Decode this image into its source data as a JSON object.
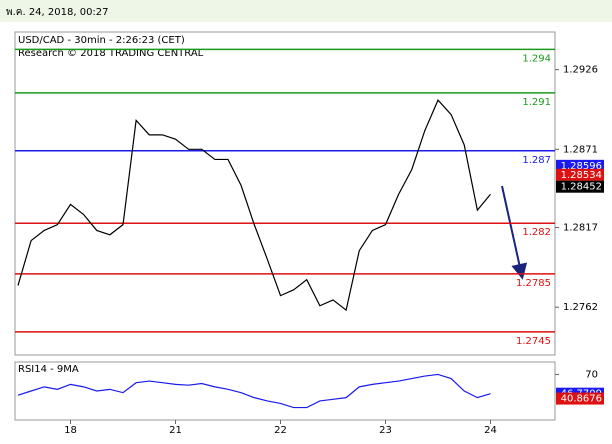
{
  "header": "พ.ค. 24, 2018, 00:27",
  "chart_data": [
    {
      "type": "line",
      "title": "USD/CAD - 30min - 2:26:23 (CET)",
      "subtitle": "Research © 2018 TRADING CENTRAL",
      "categories": [
        null,
        null,
        null,
        null,
        "18",
        null,
        null,
        null,
        null,
        null,
        null,
        null,
        "21",
        null,
        null,
        null,
        null,
        null,
        null,
        null,
        "22",
        null,
        null,
        null,
        null,
        null,
        null,
        null,
        "23",
        null,
        null,
        null,
        null,
        null,
        null,
        null,
        "24"
      ],
      "values": [
        1.2777,
        1.2808,
        1.2815,
        1.2819,
        1.2833,
        1.2826,
        1.2815,
        1.2812,
        1.2819,
        1.2891,
        1.2881,
        1.2881,
        1.2878,
        1.2871,
        1.2871,
        1.2864,
        1.2864,
        1.2846,
        1.2819,
        1.2795,
        1.277,
        1.2774,
        1.2781,
        1.2763,
        1.2767,
        1.276,
        1.2801,
        1.2815,
        1.2819,
        1.284,
        1.2857,
        1.2884,
        1.2905,
        1.2895,
        1.2874,
        1.2829,
        1.284
      ],
      "color": "#000000",
      "ylim": [
        1.2729,
        1.2952
      ],
      "yticks": [
        1.2762,
        1.2817,
        1.2871,
        1.2926
      ],
      "levels": [
        {
          "value": 1.294,
          "color": "#1a9a1a"
        },
        {
          "value": 1.291,
          "color": "#1a9a1a"
        },
        {
          "value": 1.287,
          "color": "#1a1aee"
        },
        {
          "value": 1.282,
          "color": "#dd1111"
        },
        {
          "value": 1.2785,
          "color": "#dd1111"
        },
        {
          "value": 1.2745,
          "color": "#dd1111"
        }
      ],
      "price_labels": [
        {
          "value": 1.28596,
          "color": "#1a1aee"
        },
        {
          "value": 1.28534,
          "color": "#dd1111"
        },
        {
          "value": 1.28452,
          "color": "#000000"
        }
      ]
    },
    {
      "type": "line",
      "title": "RSI14 - 9MA",
      "values": [
        45,
        50,
        55,
        52,
        58,
        55,
        50,
        52,
        48,
        60,
        62,
        60,
        58,
        57,
        59,
        55,
        52,
        48,
        42,
        38,
        35,
        30,
        30,
        38,
        40,
        42,
        55,
        58,
        60,
        62,
        65,
        68,
        70,
        65,
        50,
        42,
        46.7709
      ],
      "color": "#1a1aee",
      "ylim": [
        15,
        85
      ],
      "yticks": [
        70
      ],
      "price_labels": [
        {
          "value": 46.7709,
          "color": "#1a1aee"
        },
        {
          "value": 40.8676,
          "color": "#dd1111"
        }
      ]
    }
  ]
}
